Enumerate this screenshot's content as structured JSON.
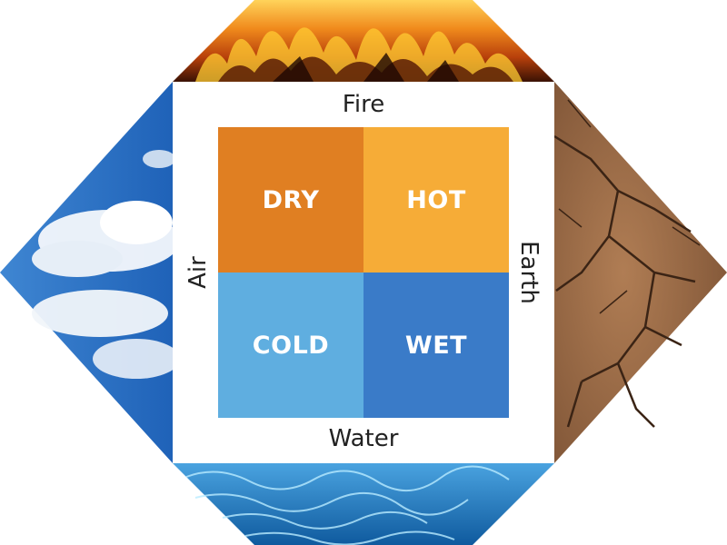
{
  "diagram": {
    "elements": {
      "top": "Fire",
      "left": "Air",
      "right": "Earth",
      "bottom": "Water"
    },
    "qualities": [
      {
        "label": "DRY",
        "color": "#e07f22"
      },
      {
        "label": "HOT",
        "color": "#f6ac37"
      },
      {
        "label": "COLD",
        "color": "#5faee0"
      },
      {
        "label": "WET",
        "color": "#3a7bc8"
      }
    ]
  },
  "colors": {
    "fire_dark": "#3a1204",
    "fire_mid": "#c24a0c",
    "fire_bright": "#ffb52e",
    "sky": "#2a6fc4",
    "cloud": "#f4f8fc",
    "earth": "#9a6a45",
    "earth_crack": "#3b2415",
    "water": "#1f73b8",
    "water_light": "#b9ebff"
  }
}
